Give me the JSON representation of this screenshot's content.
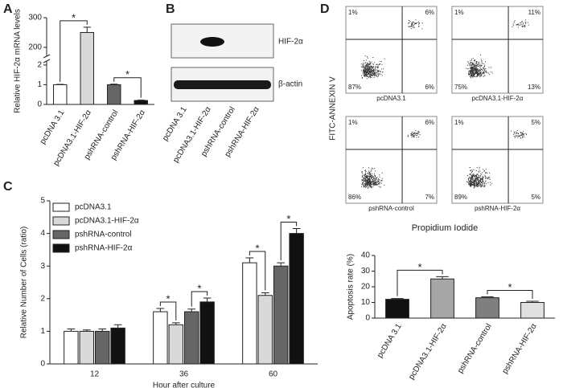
{
  "panel_labels": [
    "A",
    "B",
    "C",
    "D"
  ],
  "chart_data": [
    {
      "type": "bar",
      "ylabel": "Relative HIF-2α mRNA levels",
      "categories": [
        "pcDNA 3.1",
        "pcDNA3.1-HIF-2α",
        "pshRNA-control",
        "pshRNA-HIF-2α"
      ],
      "values": [
        1,
        250,
        1,
        0.2
      ],
      "errors": [
        0.02,
        18,
        0.03,
        0.02
      ],
      "colors": [
        "#ffffff",
        "#d9d9d9",
        "#666666",
        "#111111"
      ],
      "ylim": [
        0,
        300
      ],
      "axis_break": [
        2.2,
        170
      ],
      "yticks": [
        0,
        1,
        2,
        200,
        300
      ],
      "significance": [
        {
          "pair": [
            0,
            1
          ],
          "label": "*"
        },
        {
          "pair": [
            2,
            3
          ],
          "label": "*"
        }
      ]
    },
    {
      "type": "grouped-bar",
      "ylabel": "Relative Number of Cells (ratio)",
      "xlabel": "Hour after culture",
      "categories": [
        "12",
        "36",
        "60"
      ],
      "series": [
        {
          "name": "pcDNA3.1",
          "color": "#ffffff",
          "values": [
            1.0,
            1.6,
            3.1
          ],
          "errors": [
            0.07,
            0.1,
            0.15
          ]
        },
        {
          "name": "pcDNA3.1-HIF-2α",
          "color": "#d9d9d9",
          "values": [
            1.0,
            1.2,
            2.1
          ],
          "errors": [
            0.04,
            0.06,
            0.08
          ]
        },
        {
          "name": "pshRNA-control",
          "color": "#666666",
          "values": [
            1.0,
            1.6,
            3.0
          ],
          "errors": [
            0.07,
            0.08,
            0.1
          ]
        },
        {
          "name": "pshRNA-HIF-2α",
          "color": "#111111",
          "values": [
            1.1,
            1.9,
            4.0
          ],
          "errors": [
            0.1,
            0.12,
            0.15
          ]
        }
      ],
      "ylim": [
        0,
        5
      ],
      "yticks": [
        0,
        1,
        2,
        3,
        4,
        5
      ],
      "significance": [
        {
          "category": 1,
          "pair": [
            0,
            1
          ],
          "label": "*"
        },
        {
          "category": 1,
          "pair": [
            2,
            3
          ],
          "label": "*"
        },
        {
          "category": 2,
          "pair": [
            0,
            1
          ],
          "label": "*"
        },
        {
          "category": 2,
          "pair": [
            2,
            3
          ],
          "label": "*"
        }
      ]
    },
    {
      "type": "bar",
      "ylabel": "Apoptosis rate (%)",
      "categories": [
        "pcDNA 3.1",
        "pcDNA3.1-HIF-2α",
        "pshRNA-control",
        "pshRNA-HIF-2α"
      ],
      "values": [
        12,
        25,
        13,
        10
      ],
      "errors": [
        0.5,
        1.5,
        0.6,
        0.8
      ],
      "colors": [
        "#111111",
        "#a6a6a6",
        "#7f7f7f",
        "#e0e0e0"
      ],
      "ylim": [
        0,
        40
      ],
      "yticks": [
        0,
        10,
        20,
        30,
        40
      ],
      "significance": [
        {
          "pair": [
            0,
            1
          ],
          "label": "*"
        },
        {
          "pair": [
            2,
            3
          ],
          "label": "*"
        }
      ]
    }
  ],
  "blot": {
    "bands": [
      "HIF-2α",
      "β-actin"
    ],
    "lanes": [
      "pcDNA 3.1",
      "pcDNA3.1-HIF-2α",
      "pshRNA-control",
      "pshRNA-HIF-2α"
    ]
  },
  "flow": {
    "ylabel": "FITC-ANNEXIN V",
    "xlabel": "Propidium Iodide",
    "plots": [
      {
        "label": "pcDNA3.1",
        "quadrants": [
          "1%",
          "6%",
          "87%",
          "6%"
        ]
      },
      {
        "label": "pcDNA3.1-HIF-2α",
        "quadrants": [
          "1%",
          "11%",
          "75%",
          "13%"
        ]
      },
      {
        "label": "pshRNA-control",
        "quadrants": [
          "1%",
          "6%",
          "86%",
          "7%"
        ]
      },
      {
        "label": "pshRNA-HIF-2α",
        "quadrants": [
          "1%",
          "5%",
          "89%",
          "5%"
        ]
      }
    ]
  }
}
